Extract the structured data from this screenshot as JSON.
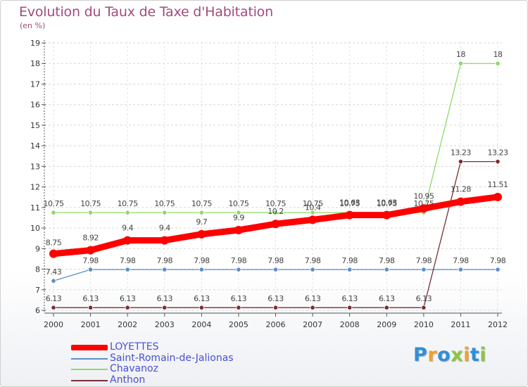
{
  "chart_data": {
    "type": "line",
    "title": "Evolution du Taux de Taxe d'Habitation",
    "subtitle": "(en %)",
    "xlabel": "",
    "ylabel": "(en %)",
    "ylim": [
      6,
      19
    ],
    "yticks": [
      "6",
      "7",
      "8",
      "9",
      "10",
      "11",
      "12",
      "13",
      "14",
      "15",
      "16",
      "17",
      "18",
      "19"
    ],
    "categories": [
      "2000",
      "2001",
      "2002",
      "2003",
      "2004",
      "2005",
      "2006",
      "2007",
      "2008",
      "2009",
      "2010",
      "2011",
      "2012"
    ],
    "series": [
      {
        "name": "LOYETTES",
        "color": "#ff0000",
        "values": [
          8.75,
          8.92,
          9.4,
          9.4,
          9.7,
          9.9,
          10.2,
          10.4,
          10.63,
          10.63,
          10.95,
          11.28,
          11.51
        ],
        "labels": [
          "8.75",
          "8.92",
          "9.4",
          "9.4",
          "9.7",
          "9.9",
          "10.2",
          "10.4",
          "10.63",
          "10.63",
          "10.95",
          "11.28",
          "11.51"
        ]
      },
      {
        "name": "Saint-Romain-de-Jalionas",
        "color": "#5b8fc7",
        "values": [
          7.43,
          7.98,
          7.98,
          7.98,
          7.98,
          7.98,
          7.98,
          7.98,
          7.98,
          7.98,
          7.98,
          7.98,
          7.98
        ],
        "labels": [
          "7.43",
          "7.98",
          "7.98",
          "7.98",
          "7.98",
          "7.98",
          "7.98",
          "7.98",
          "7.98",
          "7.98",
          "7.98",
          "7.98",
          "7.98"
        ]
      },
      {
        "name": "Chavanoz",
        "color": "#8fd96a",
        "values": [
          10.75,
          10.75,
          10.75,
          10.75,
          10.75,
          10.75,
          10.75,
          10.75,
          10.75,
          10.75,
          10.75,
          18,
          18
        ],
        "labels": [
          "10.75",
          "10.75",
          "10.75",
          "10.75",
          "10.75",
          "10.75",
          "10.75",
          "10.75",
          "10.75",
          "10.75",
          "10.75",
          "18",
          "18"
        ]
      },
      {
        "name": "Anthon",
        "color": "#7a2e35",
        "values": [
          6.13,
          6.13,
          6.13,
          6.13,
          6.13,
          6.13,
          6.13,
          6.13,
          6.13,
          6.13,
          6.13,
          13.23,
          13.23
        ],
        "labels": [
          "6.13",
          "6.13",
          "6.13",
          "6.13",
          "6.13",
          "6.13",
          "6.13",
          "6.13",
          "6.13",
          "6.13",
          "6.13",
          "13.23",
          "13.23"
        ]
      }
    ],
    "legend_position": "bottom-left",
    "grid": true
  },
  "legend": [
    {
      "label": "LOYETTES"
    },
    {
      "label": "Saint-Romain-de-Jalionas"
    },
    {
      "label": "Chavanoz"
    },
    {
      "label": "Anthon"
    }
  ],
  "logo": {
    "text": "Proxiti"
  }
}
